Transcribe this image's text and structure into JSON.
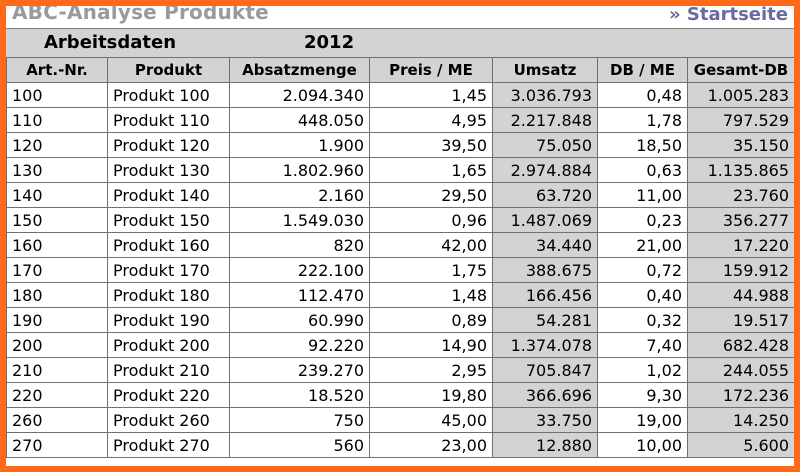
{
  "header": {
    "title": "ABC-Analyse Produkte",
    "start_link": "» Startseite"
  },
  "meta": {
    "label": "Arbeitsdaten",
    "year": "2012"
  },
  "table": {
    "columns": [
      "Art.-Nr.",
      "Produkt",
      "Absatzmenge",
      "Preis / ME",
      "Umsatz",
      "DB / ME",
      "Gesamt-DB"
    ],
    "rows": [
      [
        "100",
        "Produkt 100",
        "2.094.340",
        "1,45",
        "3.036.793",
        "0,48",
        "1.005.283"
      ],
      [
        "110",
        "Produkt 110",
        "448.050",
        "4,95",
        "2.217.848",
        "1,78",
        "797.529"
      ],
      [
        "120",
        "Produkt 120",
        "1.900",
        "39,50",
        "75.050",
        "18,50",
        "35.150"
      ],
      [
        "130",
        "Produkt 130",
        "1.802.960",
        "1,65",
        "2.974.884",
        "0,63",
        "1.135.865"
      ],
      [
        "140",
        "Produkt 140",
        "2.160",
        "29,50",
        "63.720",
        "11,00",
        "23.760"
      ],
      [
        "150",
        "Produkt 150",
        "1.549.030",
        "0,96",
        "1.487.069",
        "0,23",
        "356.277"
      ],
      [
        "160",
        "Produkt 160",
        "820",
        "42,00",
        "34.440",
        "21,00",
        "17.220"
      ],
      [
        "170",
        "Produkt 170",
        "222.100",
        "1,75",
        "388.675",
        "0,72",
        "159.912"
      ],
      [
        "180",
        "Produkt 180",
        "112.470",
        "1,48",
        "166.456",
        "0,40",
        "44.988"
      ],
      [
        "190",
        "Produkt 190",
        "60.990",
        "0,89",
        "54.281",
        "0,32",
        "19.517"
      ],
      [
        "200",
        "Produkt 200",
        "92.220",
        "14,90",
        "1.374.078",
        "7,40",
        "682.428"
      ],
      [
        "210",
        "Produkt 210",
        "239.270",
        "2,95",
        "705.847",
        "1,02",
        "244.055"
      ],
      [
        "220",
        "Produkt 220",
        "18.520",
        "19,80",
        "366.696",
        "9,30",
        "172.236"
      ],
      [
        "260",
        "Produkt 260",
        "750",
        "45,00",
        "33.750",
        "19,00",
        "14.250"
      ],
      [
        "270",
        "Produkt 270",
        "560",
        "23,00",
        "12.880",
        "10,00",
        "5.600"
      ]
    ]
  },
  "colors": {
    "frame": "#ff6a1a",
    "header_bg": "#d3d3d3",
    "shaded_cell": "#d3d3d3",
    "title_text": "#9a9a9a",
    "link_text": "#6a6aa0"
  }
}
